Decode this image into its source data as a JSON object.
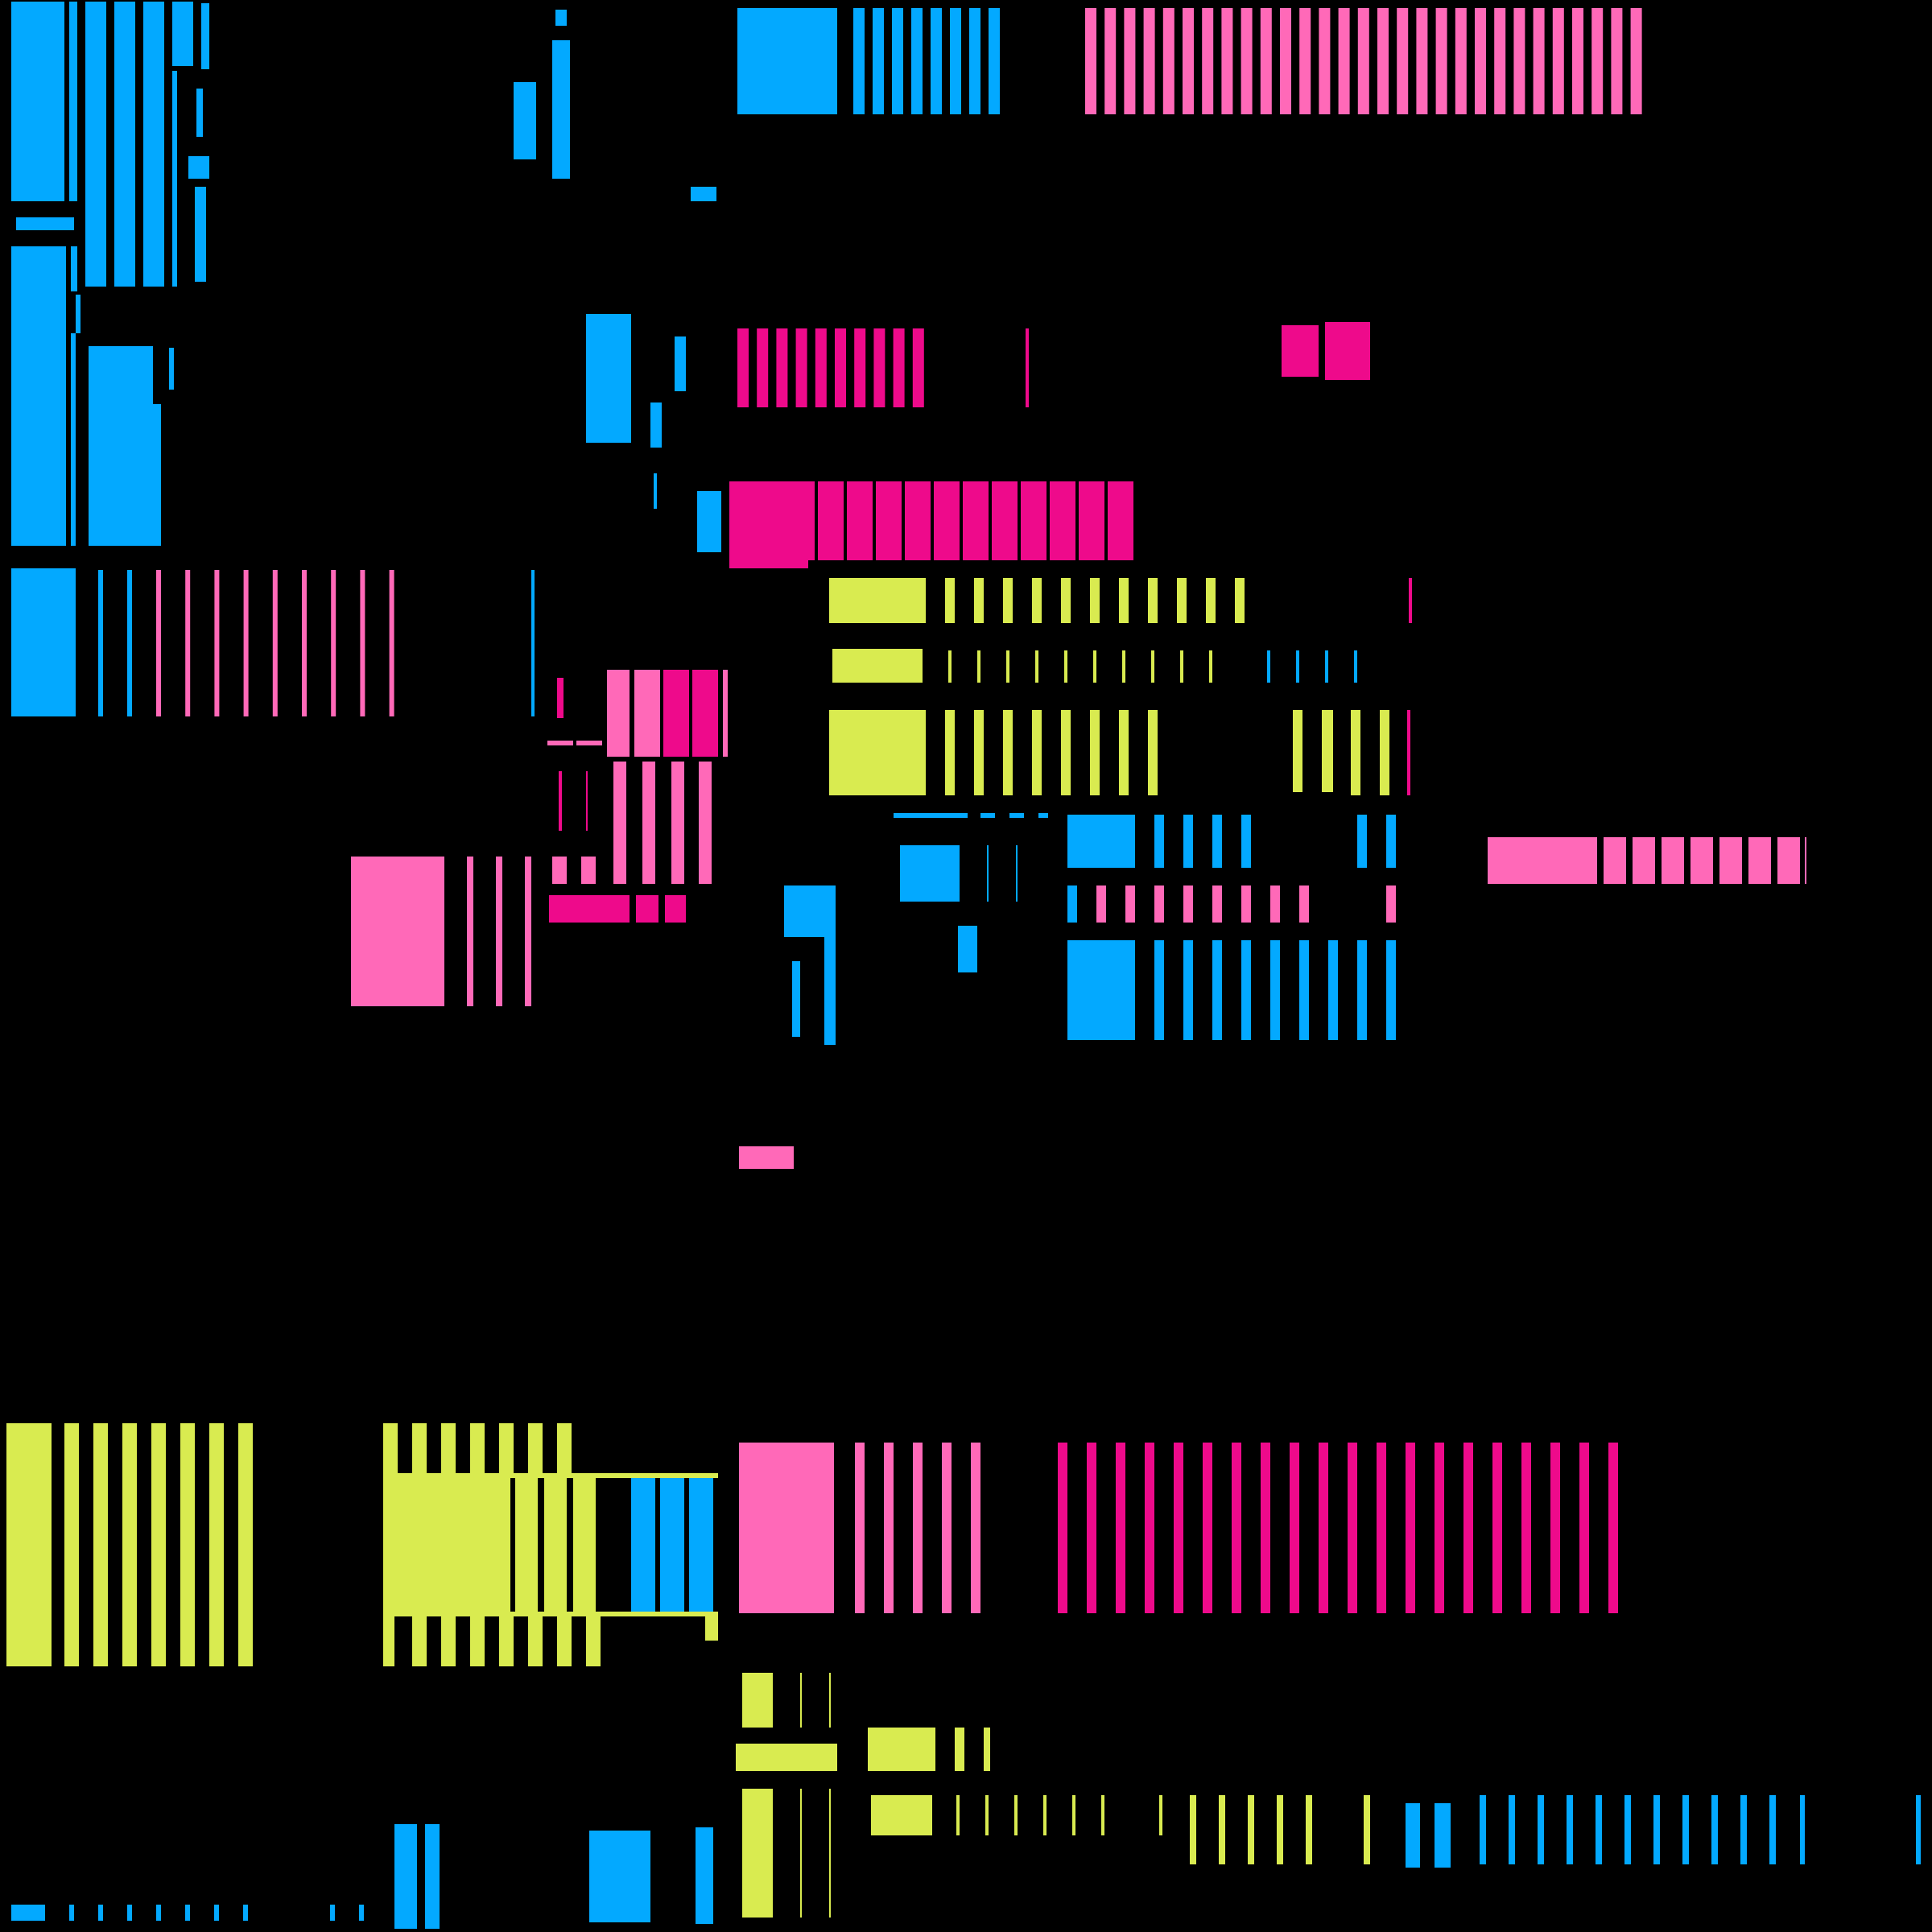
{
  "palette": {
    "background": "#000000",
    "blue": "#03A9FF",
    "pink": "#FF69B8",
    "magenta": "#EE0A8B",
    "yellow": "#D9EB50"
  }
}
